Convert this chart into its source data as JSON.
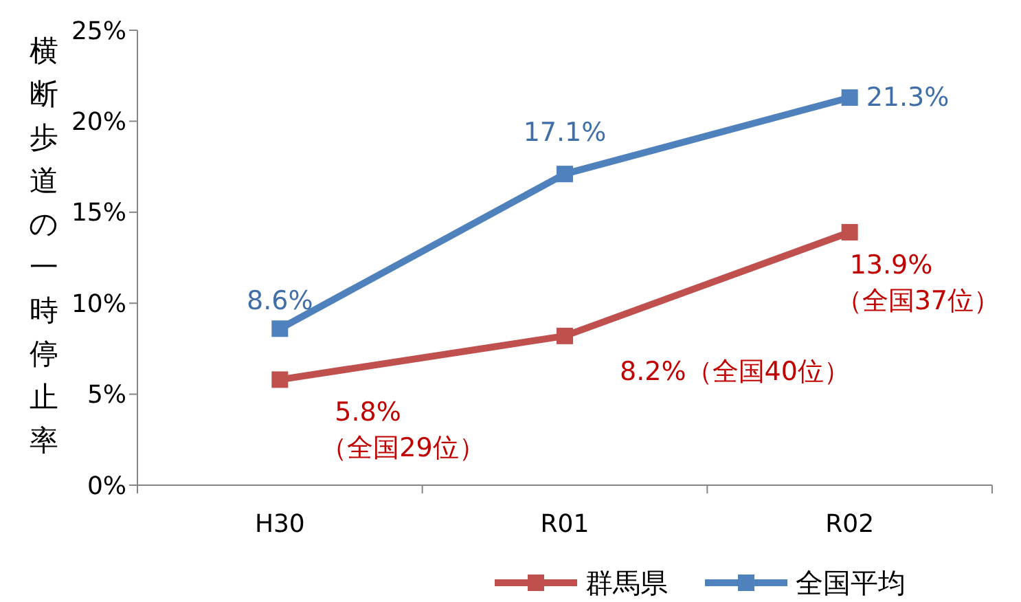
{
  "chart_data": {
    "type": "line",
    "ylabel": "横断歩道の一時停止率",
    "categories": [
      "H30",
      "R01",
      "R02"
    ],
    "ylim": [
      0,
      0.25
    ],
    "yticks": [
      {
        "value": 0,
        "label": "0%"
      },
      {
        "value": 0.05,
        "label": "5%"
      },
      {
        "value": 0.1,
        "label": "10%"
      },
      {
        "value": 0.15,
        "label": "15%"
      },
      {
        "value": 0.2,
        "label": "20%"
      },
      {
        "value": 0.25,
        "label": "25%"
      }
    ],
    "series": [
      {
        "name": "群馬県",
        "color": "#c0504d",
        "values": [
          0.058,
          0.082,
          0.139
        ],
        "value_labels": [
          "5.8%\n（全国29位）",
          "8.2%（全国40位）",
          "13.9%\n（全国37位）"
        ]
      },
      {
        "name": "全国平均",
        "color": "#4f81bd",
        "values": [
          0.086,
          0.171,
          0.213
        ],
        "value_labels": [
          "8.6%",
          "17.1%",
          "21.3%"
        ]
      }
    ],
    "marker": "square",
    "grid": false,
    "legend": "bottom right"
  }
}
